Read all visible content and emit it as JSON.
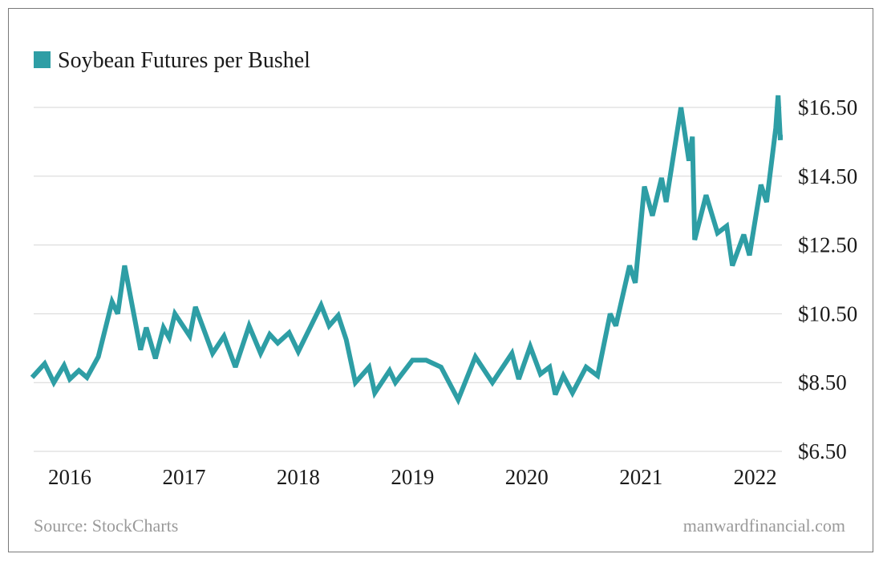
{
  "chart_data": {
    "type": "line",
    "title": "",
    "legend": {
      "label": "Soybean Futures per Bushel",
      "placement": "top-left"
    },
    "series": [
      {
        "name": "Soybean Futures per Bushel",
        "color": "#2e9ea5",
        "points": [
          [
            2015.67,
            8.65
          ],
          [
            2015.78,
            9.05
          ],
          [
            2015.86,
            8.5
          ],
          [
            2015.95,
            9.0
          ],
          [
            2016.0,
            8.6
          ],
          [
            2016.08,
            8.85
          ],
          [
            2016.15,
            8.65
          ],
          [
            2016.25,
            9.25
          ],
          [
            2016.37,
            10.85
          ],
          [
            2016.42,
            10.5
          ],
          [
            2016.48,
            11.9
          ],
          [
            2016.62,
            9.45
          ],
          [
            2016.67,
            10.1
          ],
          [
            2016.75,
            9.2
          ],
          [
            2016.82,
            10.1
          ],
          [
            2016.87,
            9.8
          ],
          [
            2016.92,
            10.5
          ],
          [
            2017.05,
            9.85
          ],
          [
            2017.1,
            10.7
          ],
          [
            2017.25,
            9.35
          ],
          [
            2017.35,
            9.85
          ],
          [
            2017.45,
            8.95
          ],
          [
            2017.57,
            10.15
          ],
          [
            2017.67,
            9.35
          ],
          [
            2017.75,
            9.9
          ],
          [
            2017.82,
            9.65
          ],
          [
            2017.92,
            9.95
          ],
          [
            2018.0,
            9.4
          ],
          [
            2018.2,
            10.75
          ],
          [
            2018.27,
            10.15
          ],
          [
            2018.35,
            10.45
          ],
          [
            2018.42,
            9.75
          ],
          [
            2018.5,
            8.5
          ],
          [
            2018.62,
            8.95
          ],
          [
            2018.67,
            8.2
          ],
          [
            2018.8,
            8.85
          ],
          [
            2018.85,
            8.5
          ],
          [
            2019.0,
            9.15
          ],
          [
            2019.12,
            9.15
          ],
          [
            2019.25,
            8.95
          ],
          [
            2019.4,
            8.0
          ],
          [
            2019.55,
            9.25
          ],
          [
            2019.7,
            8.5
          ],
          [
            2019.87,
            9.35
          ],
          [
            2019.93,
            8.6
          ],
          [
            2020.03,
            9.55
          ],
          [
            2020.12,
            8.75
          ],
          [
            2020.2,
            8.95
          ],
          [
            2020.25,
            8.15
          ],
          [
            2020.32,
            8.7
          ],
          [
            2020.4,
            8.2
          ],
          [
            2020.52,
            8.95
          ],
          [
            2020.62,
            8.7
          ],
          [
            2020.73,
            10.5
          ],
          [
            2020.78,
            10.15
          ],
          [
            2020.9,
            11.9
          ],
          [
            2020.95,
            11.4
          ],
          [
            2021.03,
            14.2
          ],
          [
            2021.1,
            13.35
          ],
          [
            2021.18,
            14.45
          ],
          [
            2021.22,
            13.75
          ],
          [
            2021.35,
            16.5
          ],
          [
            2021.42,
            14.95
          ],
          [
            2021.45,
            15.65
          ],
          [
            2021.47,
            12.65
          ],
          [
            2021.57,
            13.95
          ],
          [
            2021.67,
            12.85
          ],
          [
            2021.75,
            13.05
          ],
          [
            2021.8,
            11.9
          ],
          [
            2021.9,
            12.8
          ],
          [
            2021.95,
            12.2
          ],
          [
            2022.05,
            14.25
          ],
          [
            2022.1,
            13.75
          ],
          [
            2022.18,
            15.9
          ],
          [
            2022.2,
            16.85
          ],
          [
            2022.22,
            15.55
          ],
          [
            2022.22,
            15.7
          ]
        ]
      }
    ],
    "x_ticks": [
      {
        "value": 2016,
        "label": "2016"
      },
      {
        "value": 2017,
        "label": "2017"
      },
      {
        "value": 2018,
        "label": "2018"
      },
      {
        "value": 2019,
        "label": "2019"
      },
      {
        "value": 2020,
        "label": "2020"
      },
      {
        "value": 2021,
        "label": "2021"
      },
      {
        "value": 2022,
        "label": "2022"
      }
    ],
    "y_ticks": [
      {
        "value": 6.5,
        "label": "$6.50"
      },
      {
        "value": 8.5,
        "label": "$8.50"
      },
      {
        "value": 10.5,
        "label": "$10.50"
      },
      {
        "value": 12.5,
        "label": "$12.50"
      },
      {
        "value": 14.5,
        "label": "$14.50"
      },
      {
        "value": 16.5,
        "label": "$16.50"
      }
    ],
    "xlim": [
      2015.67,
      2022.22
    ],
    "ylim": [
      6.5,
      16.5
    ],
    "y_axis_side": "right",
    "grid": "horizontal"
  },
  "footer": {
    "source": "Source: StockCharts",
    "site": "manwardfinancial.com"
  }
}
